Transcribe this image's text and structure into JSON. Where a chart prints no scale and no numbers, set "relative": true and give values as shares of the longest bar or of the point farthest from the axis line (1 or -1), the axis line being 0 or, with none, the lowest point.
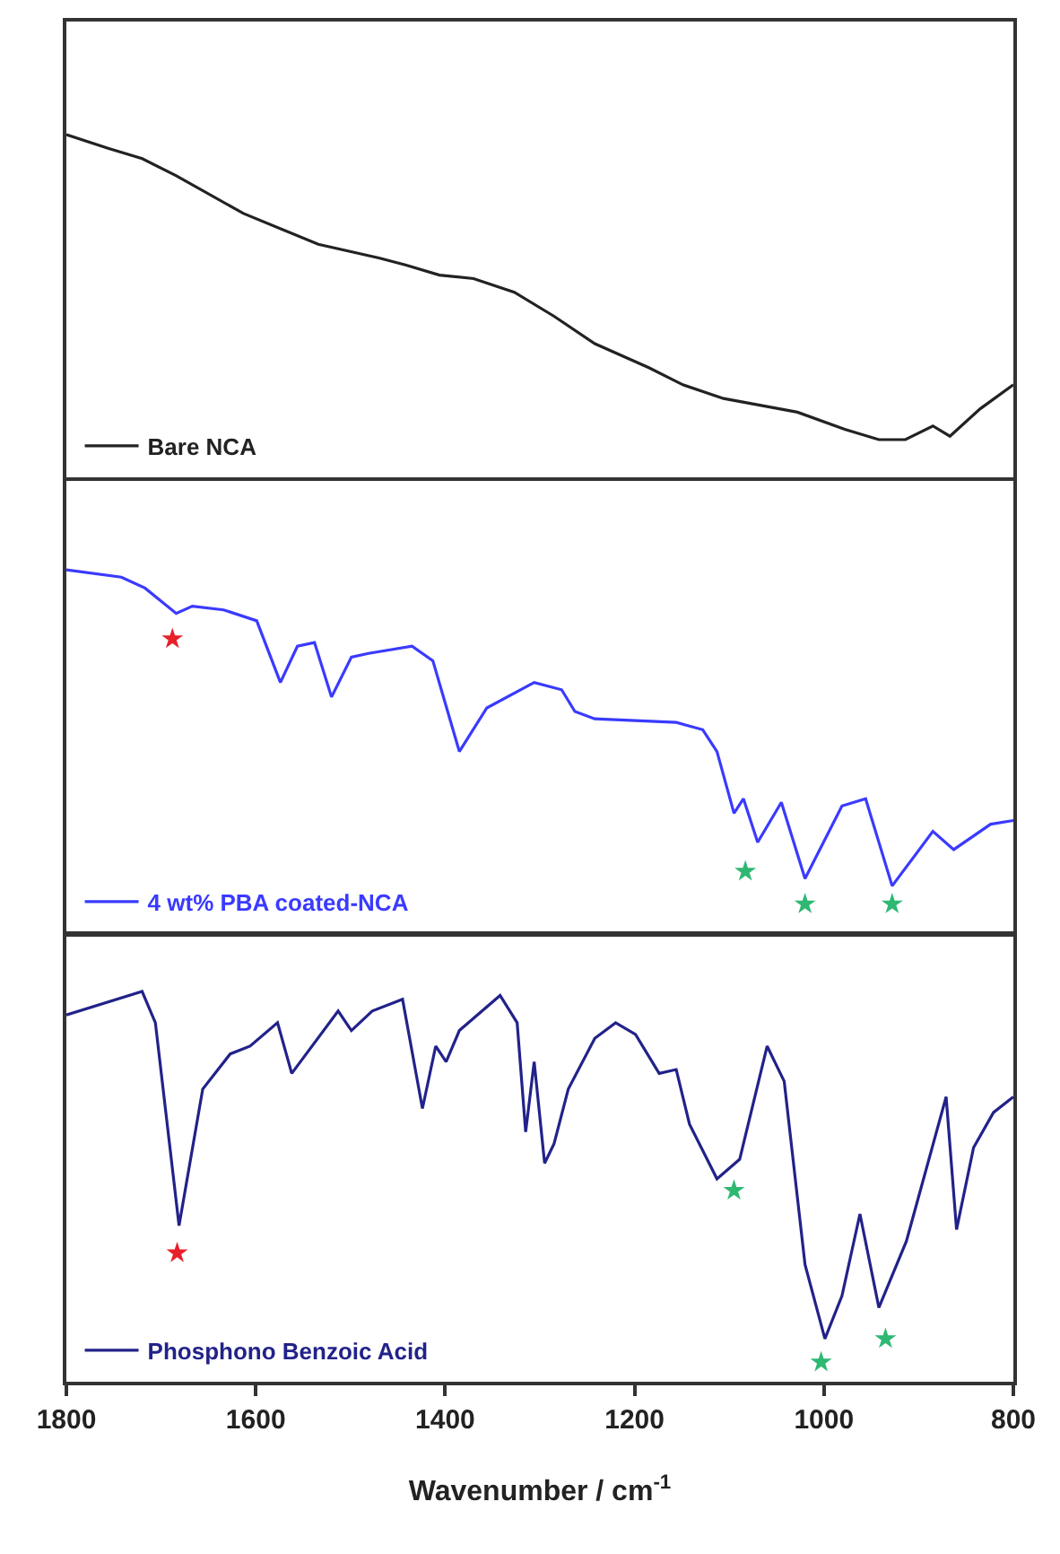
{
  "chart_data": [
    {
      "type": "line",
      "relative": true,
      "xlim": [
        1800,
        800
      ],
      "tick_labels": false,
      "legend": "bottom left",
      "series": [
        {
          "name": "Bare NCA",
          "color": "#222222",
          "x": [
            1800,
            1756,
            1720,
            1684,
            1613,
            1534,
            1470,
            1442,
            1406,
            1370,
            1327,
            1285,
            1242,
            1185,
            1149,
            1106,
            1028,
            978,
            942,
            914,
            885,
            867,
            835,
            800
          ],
          "values": [
            1,
            0.96,
            0.93,
            0.88,
            0.77,
            0.68,
            0.64,
            0.62,
            0.59,
            0.58,
            0.54,
            0.47,
            0.39,
            0.32,
            0.27,
            0.23,
            0.19,
            0.14,
            0.11,
            0.11,
            0.15,
            0.12,
            0.2,
            0.27
          ]
        }
      ]
    },
    {
      "type": "line",
      "relative": true,
      "xlim": [
        1800,
        800
      ],
      "tick_labels": false,
      "legend": "bottom left",
      "series": [
        {
          "name": "4 wt% PBA coated-NCA",
          "color": "#3a3aff",
          "x": [
            1800,
            1742,
            1717,
            1684,
            1667,
            1634,
            1599,
            1574,
            1556,
            1538,
            1520,
            1499,
            1481,
            1435,
            1413,
            1385,
            1356,
            1306,
            1277,
            1263,
            1242,
            1156,
            1128,
            1113,
            1095,
            1085,
            1070,
            1045,
            1020,
            981,
            956,
            928,
            885,
            863,
            824,
            800
          ],
          "values": [
            1,
            0.98,
            0.95,
            0.88,
            0.9,
            0.89,
            0.86,
            0.69,
            0.79,
            0.8,
            0.65,
            0.76,
            0.77,
            0.79,
            0.75,
            0.5,
            0.62,
            0.69,
            0.67,
            0.61,
            0.59,
            0.58,
            0.56,
            0.5,
            0.33,
            0.37,
            0.25,
            0.36,
            0.15,
            0.35,
            0.37,
            0.13,
            0.28,
            0.23,
            0.3,
            0.31
          ]
        },
        {
          "type": "scatter",
          "marker": "star",
          "color": "#e8202a",
          "x": [
            1688
          ],
          "values": [
            0.81
          ]
        },
        {
          "type": "scatter",
          "marker": "star",
          "color": "#2eb872",
          "x": [
            1083,
            1020,
            928
          ],
          "values": [
            0.17,
            0.08,
            0.08
          ]
        }
      ]
    },
    {
      "type": "line",
      "relative": true,
      "xlim": [
        1800,
        800
      ],
      "xticks": [
        1800,
        1600,
        1400,
        1200,
        1000,
        800
      ],
      "xlabel": "Wavenumber / cm$^{-1}$",
      "tick_labels": "x",
      "legend": "bottom left",
      "series": [
        {
          "name": "Phosphono Benzoic Acid",
          "color": "#22228a",
          "x": [
            1800,
            1720,
            1706,
            1681,
            1656,
            1627,
            1606,
            1577,
            1562,
            1513,
            1499,
            1477,
            1445,
            1424,
            1410,
            1399,
            1385,
            1342,
            1324,
            1315,
            1306,
            1295,
            1285,
            1270,
            1242,
            1220,
            1199,
            1174,
            1156,
            1142,
            1113,
            1089,
            1060,
            1042,
            1020,
            999,
            981,
            962,
            942,
            913,
            871,
            860,
            842,
            821,
            800
          ],
          "values": [
            0.94,
            1,
            0.92,
            0.4,
            0.75,
            0.84,
            0.86,
            0.92,
            0.79,
            0.95,
            0.9,
            0.95,
            0.98,
            0.7,
            0.86,
            0.82,
            0.9,
            0.99,
            0.92,
            0.64,
            0.82,
            0.56,
            0.61,
            0.75,
            0.88,
            0.92,
            0.89,
            0.79,
            0.8,
            0.66,
            0.52,
            0.57,
            0.86,
            0.77,
            0.3,
            0.11,
            0.22,
            0.43,
            0.19,
            0.36,
            0.73,
            0.39,
            0.6,
            0.69,
            0.73
          ]
        },
        {
          "type": "scatter",
          "marker": "star",
          "color": "#e8202a",
          "x": [
            1683
          ],
          "values": [
            0.33
          ]
        },
        {
          "type": "scatter",
          "marker": "star",
          "color": "#2eb872",
          "x": [
            1095,
            1003,
            935
          ],
          "values": [
            0.49,
            0.05,
            0.11
          ]
        }
      ]
    }
  ]
}
